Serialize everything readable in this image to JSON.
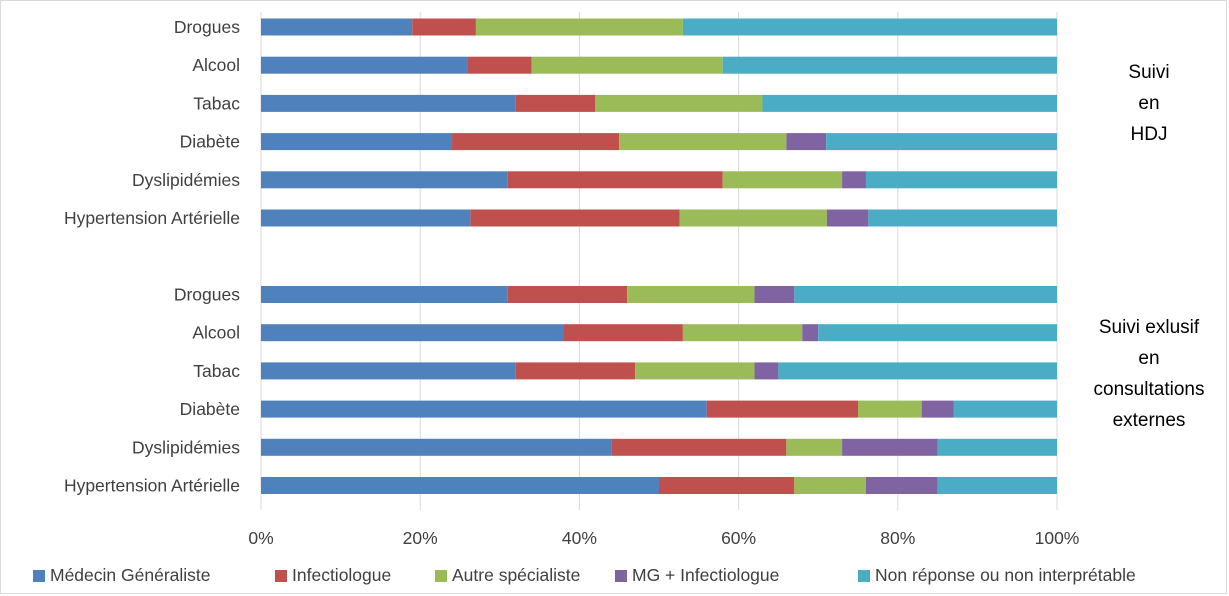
{
  "chart_data": {
    "type": "bar",
    "orientation": "horizontal",
    "stacked": "percent",
    "xlim": [
      0,
      100
    ],
    "x_ticks": [
      "0%",
      "20%",
      "40%",
      "60%",
      "80%",
      "100%"
    ],
    "grid": true,
    "legend_position": "bottom",
    "series": [
      {
        "name": "Médecin Généraliste",
        "color": "#4f81bd"
      },
      {
        "name": "Infectiologue",
        "color": "#c0504d"
      },
      {
        "name": "Autre spécialiste",
        "color": "#9bbb59"
      },
      {
        "name": "MG + Infectiologue",
        "color": "#8064a2"
      },
      {
        "name": "Non réponse ou non interprétable",
        "color": "#4bacc6"
      }
    ],
    "groups": [
      {
        "annotation": [
          "Suivi",
          "en",
          "HDJ"
        ],
        "bars": [
          {
            "label": "Drogues",
            "values": [
              19,
              8,
              26,
              0,
              47
            ]
          },
          {
            "label": "Alcool",
            "values": [
              26,
              8,
              24,
              0,
              42
            ]
          },
          {
            "label": "Tabac",
            "values": [
              32,
              10,
              21,
              0,
              37
            ]
          },
          {
            "label": "Diabète",
            "values": [
              24,
              21,
              21,
              5,
              29
            ]
          },
          {
            "label": "Dyslipidémies",
            "values": [
              31,
              27,
              15,
              3,
              24
            ]
          },
          {
            "label": "Hypertension Artérielle",
            "values": [
              26.3,
              26.3,
              18.5,
              5.2,
              23.7
            ]
          }
        ]
      },
      {
        "annotation": [
          "Suivi exlusif",
          "en",
          "consultations",
          "externes"
        ],
        "bars": [
          {
            "label": "Drogues",
            "values": [
              31,
              15,
              16,
              5,
              33
            ]
          },
          {
            "label": "Alcool",
            "values": [
              38,
              15,
              15,
              2,
              30
            ]
          },
          {
            "label": "Tabac",
            "values": [
              32,
              15,
              15,
              3,
              35
            ]
          },
          {
            "label": "Diabète",
            "values": [
              56,
              19,
              8,
              4,
              13
            ]
          },
          {
            "label": "Dyslipidémies",
            "values": [
              44,
              22,
              7,
              12,
              15
            ]
          },
          {
            "label": "Hypertension Artérielle",
            "values": [
              50,
              17,
              9,
              9,
              15
            ]
          }
        ]
      }
    ]
  }
}
